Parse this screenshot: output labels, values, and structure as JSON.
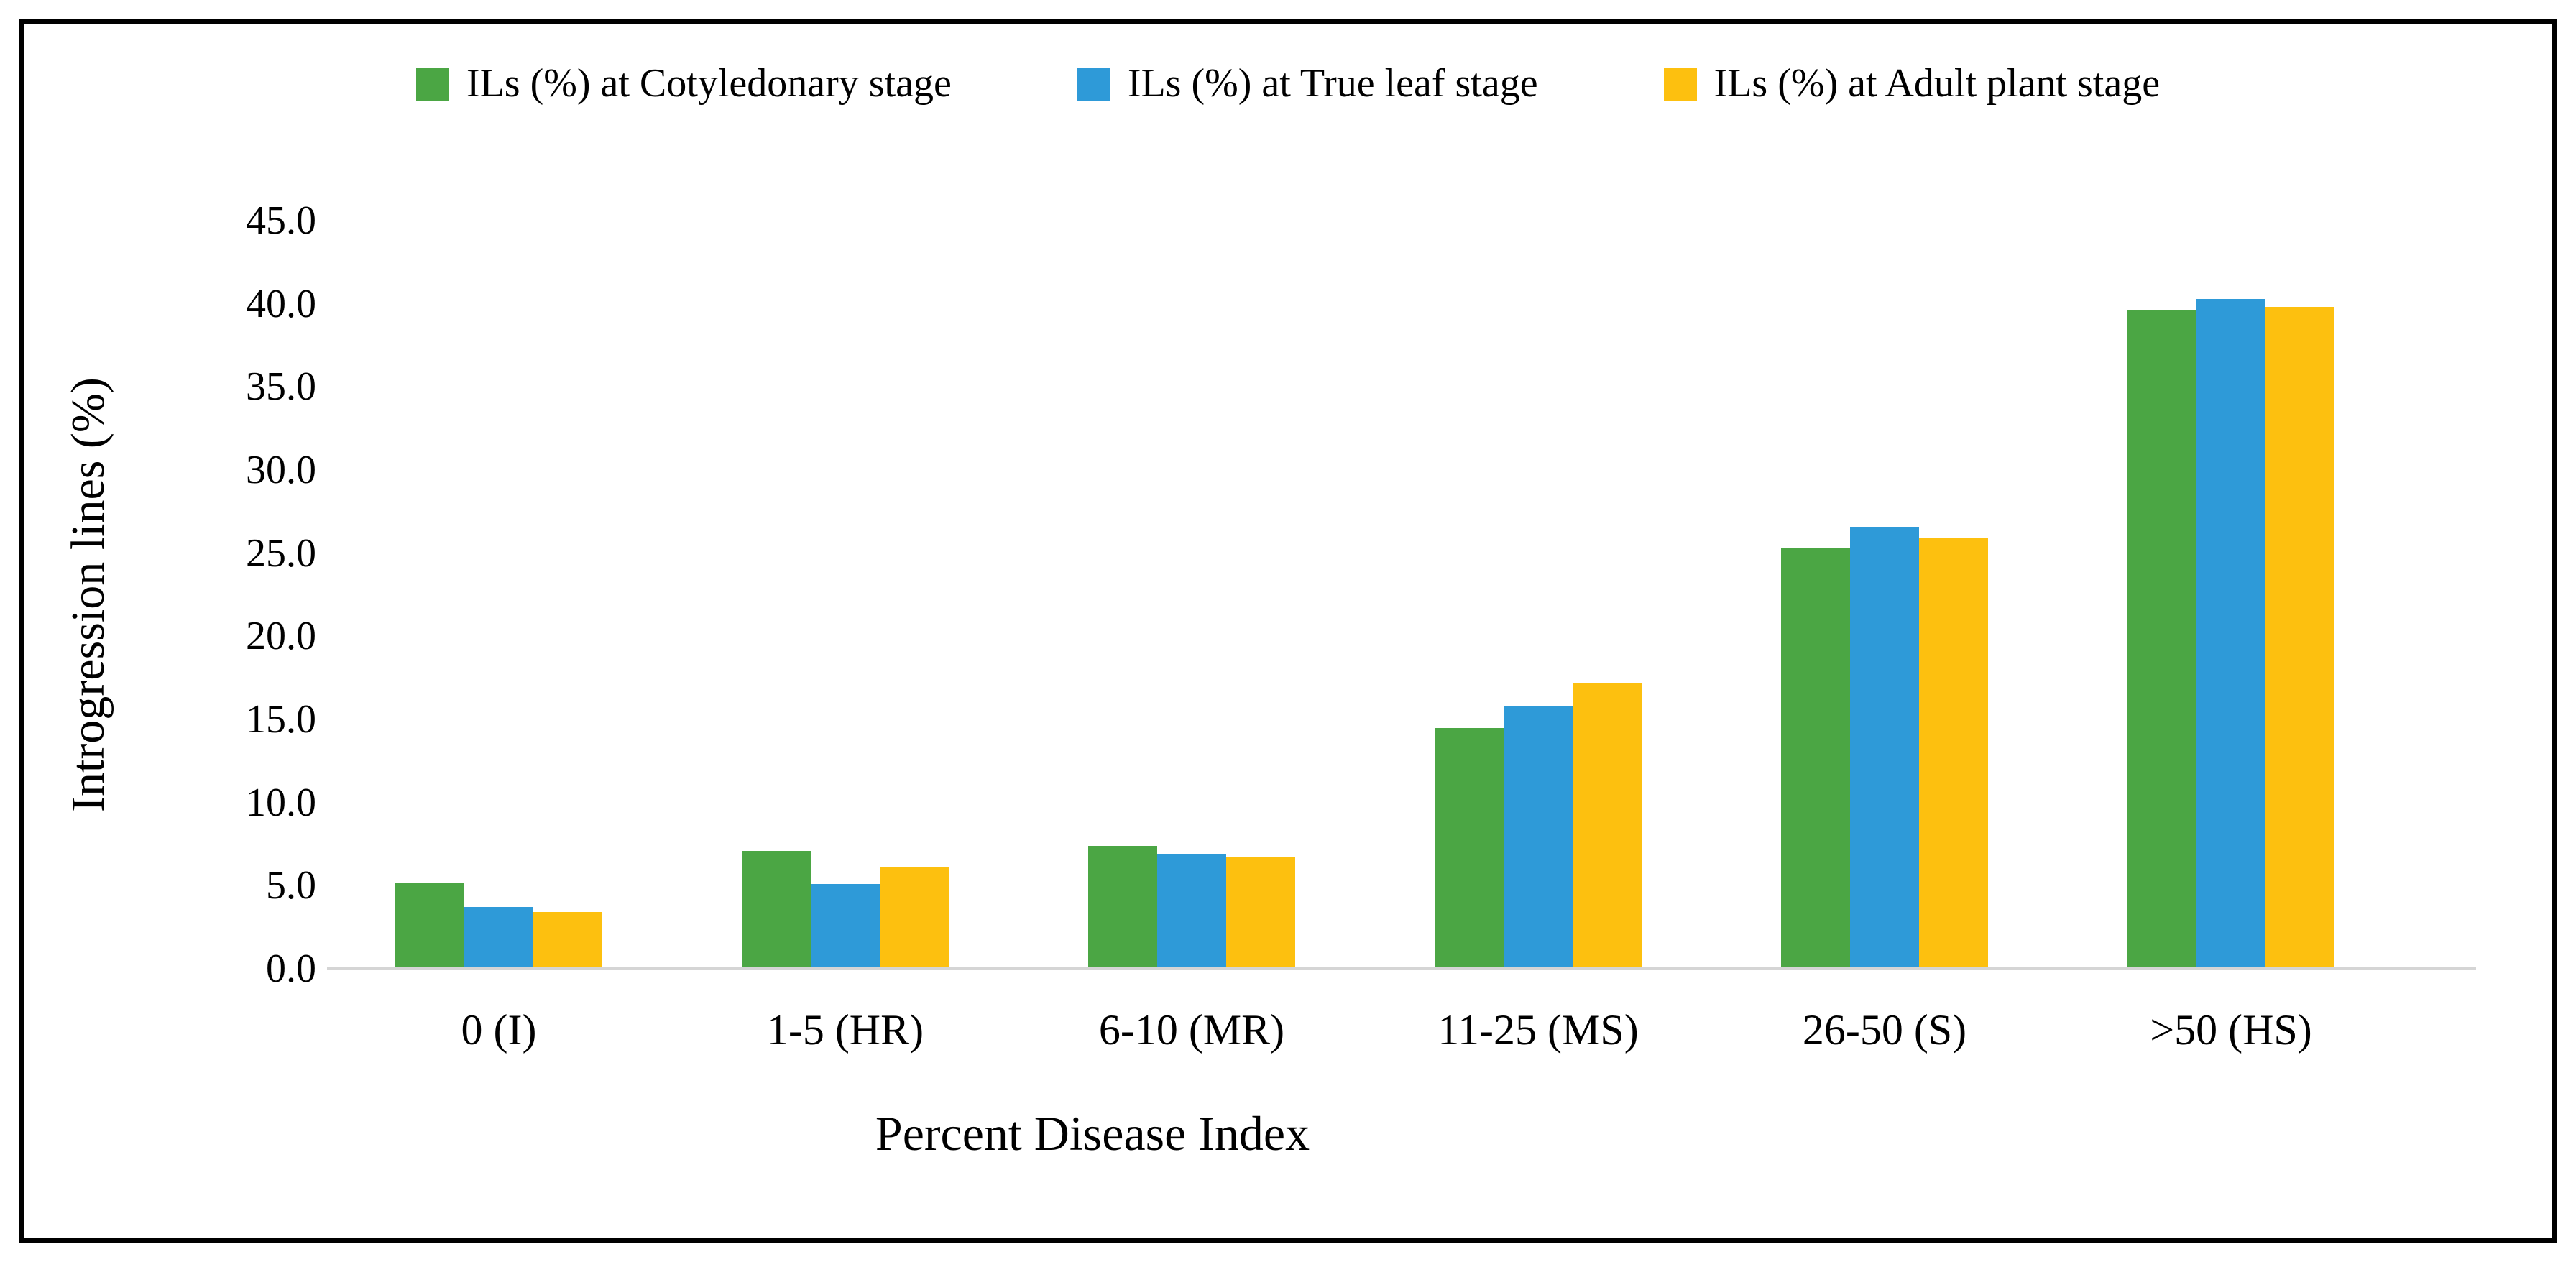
{
  "chart_data": {
    "type": "bar",
    "xlabel": "Percent Disease Index",
    "ylabel": "Introgression lines (%)",
    "categories": [
      "0 (I)",
      "1-5 (HR)",
      "6-10 (MR)",
      "11-25 (MS)",
      "26-50 (S)",
      ">50 (HS)"
    ],
    "series": [
      {
        "name": "ILs (%) at Cotyledonary stage",
        "color": "#4BA644",
        "values": [
          5.2,
          7.1,
          7.4,
          14.5,
          25.3,
          39.6
        ]
      },
      {
        "name": "ILs (%) at True leaf stage",
        "color": "#2E9AD8",
        "values": [
          3.7,
          5.1,
          6.9,
          15.8,
          26.6,
          40.3
        ]
      },
      {
        "name": "ILs (%) at Adult plant stage",
        "color": "#FDC00F",
        "values": [
          3.4,
          6.1,
          6.7,
          17.2,
          25.9,
          39.8
        ]
      }
    ],
    "ylim": [
      0,
      45
    ],
    "ytick_labels": [
      "0.0",
      "5.0",
      "10.0",
      "15.0",
      "20.0",
      "25.0",
      "30.0",
      "35.0",
      "40.0",
      "45.0"
    ],
    "grid": false,
    "legend_position": "top",
    "axis_line_color": "#D5D5D5",
    "plot_bg": "#ffffff"
  }
}
